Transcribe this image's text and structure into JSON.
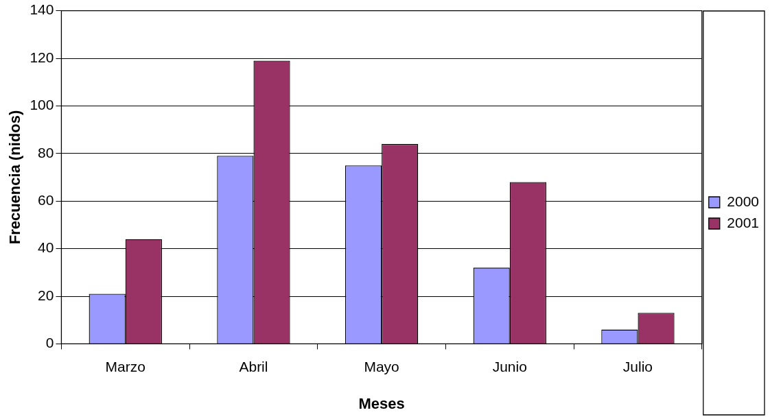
{
  "chart_data": {
    "type": "bar",
    "xlabel": "Meses",
    "ylabel": "Frecuencia (nidos)",
    "categories": [
      "Marzo",
      "Abril",
      "Mayo",
      "Junio",
      "Julio"
    ],
    "series": [
      {
        "name": "2000",
        "color": "#9999ff",
        "values": [
          21,
          79,
          75,
          32,
          6
        ]
      },
      {
        "name": "2001",
        "color": "#993366",
        "values": [
          44,
          119,
          84,
          68,
          13
        ]
      }
    ],
    "ylim": [
      0,
      140
    ],
    "yticks": [
      0,
      20,
      40,
      60,
      80,
      100,
      120,
      140
    ],
    "grid": "y",
    "legend": "right"
  }
}
